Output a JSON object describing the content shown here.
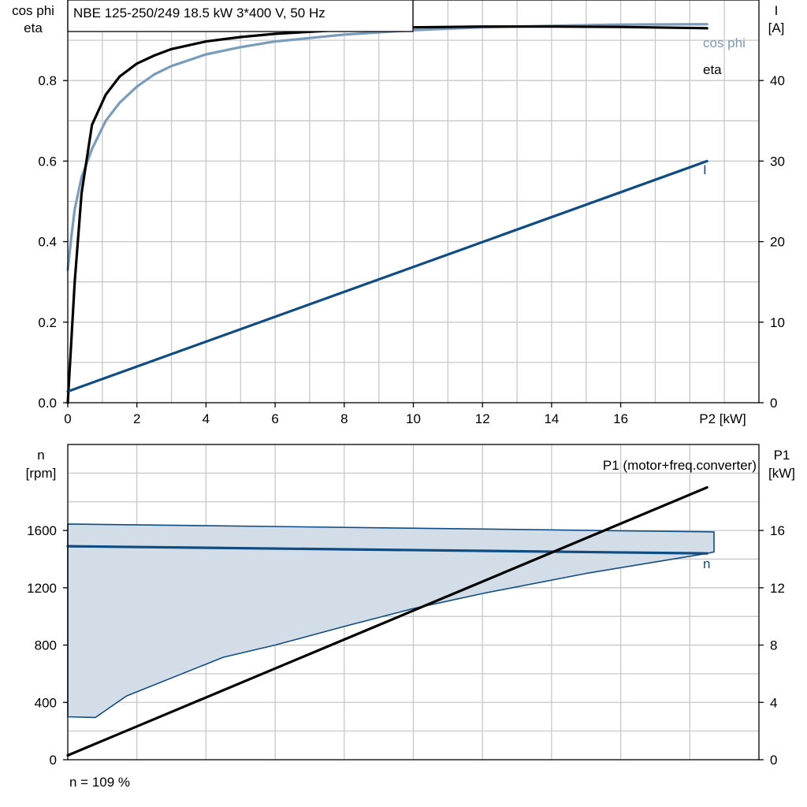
{
  "chart_data": [
    {
      "type": "line",
      "title": "NBE 125-250/249   18.5 kW   3*400 V, 50 Hz",
      "left_axis_label": [
        "cos phi",
        "eta"
      ],
      "right_axis_label": [
        "I",
        "[A]"
      ],
      "x_axis_label": "P2 [kW]",
      "x_ticks": [
        "0",
        "2",
        "4",
        "6",
        "8",
        "10",
        "12",
        "14",
        "16"
      ],
      "xlim": [
        0,
        20
      ],
      "ylim_left": [
        0,
        1.0
      ],
      "y_ticks_left": [
        "0.0",
        "0.2",
        "0.4",
        "0.6",
        "0.8"
      ],
      "ylim_right": [
        0,
        50
      ],
      "y_ticks_right": [
        "0",
        "10",
        "20",
        "30",
        "40"
      ],
      "grid": true,
      "colors": {
        "cos_phi": "#7a9cbc",
        "eta": "#000000",
        "I": "#0f4c81"
      },
      "series": [
        {
          "name": "cos phi",
          "axis": "left",
          "x": [
            0,
            0.1,
            0.2,
            0.4,
            0.7,
            1.1,
            1.5,
            2.0,
            2.5,
            3.0,
            4.0,
            5.0,
            6.0,
            8.0,
            10.0,
            12.0,
            14.0,
            16.0,
            18.5
          ],
          "y": [
            0.33,
            0.41,
            0.48,
            0.56,
            0.63,
            0.7,
            0.745,
            0.785,
            0.815,
            0.836,
            0.865,
            0.883,
            0.897,
            0.914,
            0.925,
            0.932,
            0.936,
            0.939,
            0.94
          ]
        },
        {
          "name": "eta",
          "axis": "left",
          "x": [
            0,
            0.2,
            0.4,
            0.7,
            1.1,
            1.5,
            2.0,
            2.5,
            3.0,
            4.0,
            5.0,
            6.0,
            8.0,
            10.0,
            12.0,
            14.0,
            16.0,
            18.5
          ],
          "y": [
            0.0,
            0.3,
            0.52,
            0.69,
            0.765,
            0.81,
            0.842,
            0.862,
            0.878,
            0.897,
            0.908,
            0.916,
            0.926,
            0.932,
            0.934,
            0.934,
            0.933,
            0.93
          ]
        },
        {
          "name": "I",
          "axis": "right",
          "x": [
            0,
            18.5
          ],
          "y": [
            1.4,
            30.0
          ]
        }
      ]
    },
    {
      "type": "line",
      "left_axis_label": [
        "n",
        "[rpm]"
      ],
      "right_axis_label": [
        "P1",
        "[kW]"
      ],
      "xlim": [
        0,
        20
      ],
      "ylim_left": [
        0,
        2200
      ],
      "y_ticks_left": [
        "0",
        "400",
        "800",
        "1200",
        "1600"
      ],
      "ylim_right": [
        0,
        22
      ],
      "y_ticks_right": [
        "0",
        "4",
        "8",
        "12",
        "16"
      ],
      "grid": true,
      "colors": {
        "n": "#0f4c81",
        "band_fill": "#d2dde8",
        "band_edge": "#0f4c81",
        "P1": "#000000"
      },
      "series": [
        {
          "name": "n",
          "axis": "left",
          "x": [
            0,
            18.5
          ],
          "y": [
            1490,
            1440
          ]
        },
        {
          "name": "P1 (motor+freq.converter)",
          "axis": "right",
          "x": [
            0,
            18.5
          ],
          "y": [
            0.3,
            19.0
          ]
        }
      ],
      "band": {
        "upper": {
          "x": [
            0,
            18.7
          ],
          "y": [
            1645,
            1590
          ]
        },
        "right_edge": {
          "x": [
            18.7,
            18.7
          ],
          "y": [
            1590,
            1450
          ]
        },
        "lower": {
          "x": [
            18.7,
            18.5,
            15.0,
            12.0,
            10.0,
            8.0,
            6.0,
            4.5,
            1.7,
            0.8,
            0
          ],
          "y": [
            1450,
            1440,
            1300,
            1160,
            1055,
            930,
            800,
            715,
            445,
            295,
            300
          ]
        }
      },
      "footnote": "n = 109 %"
    }
  ]
}
